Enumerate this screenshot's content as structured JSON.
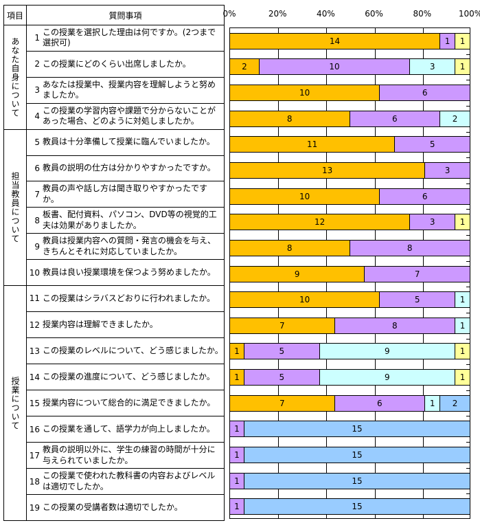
{
  "table": {
    "header_item": "項目",
    "header_question": "質問事項"
  },
  "chart_data": {
    "type": "bar",
    "stacked": true,
    "orientation": "horizontal",
    "value_axis": {
      "position": "top",
      "ticks": [
        "0%",
        "20%",
        "40%",
        "60%",
        "80%",
        "100%"
      ],
      "range_percent": [
        0,
        100
      ],
      "gridlines": true
    },
    "total_per_question": 16,
    "palette": [
      "#FFC000",
      "#CC99FF",
      "#CCFFFF",
      "#FFFF99",
      "#99CCFF"
    ],
    "groups": [
      {
        "label": "あなた自身について",
        "count": 4
      },
      {
        "label": "担当教員について",
        "count": 6
      },
      {
        "label": "授業について",
        "count": 9
      }
    ],
    "rows": [
      {
        "num": "1",
        "question": "この授業を選択した理由は何ですか。(2つまで選択可)",
        "segments": [
          {
            "value": 14,
            "color": "#FFC000"
          },
          {
            "value": 1,
            "color": "#CC99FF"
          },
          {
            "value": 1,
            "color": "#FFFF99"
          }
        ]
      },
      {
        "num": "2",
        "question": "この授業にどのくらい出席しましたか。",
        "segments": [
          {
            "value": 2,
            "color": "#FFC000"
          },
          {
            "value": 10,
            "color": "#CC99FF"
          },
          {
            "value": 3,
            "color": "#CCFFFF"
          },
          {
            "value": 1,
            "color": "#FFFF99"
          }
        ]
      },
      {
        "num": "3",
        "question": "あなたは授業中、授業内容を理解しようと努めましたか。",
        "segments": [
          {
            "value": 10,
            "color": "#FFC000"
          },
          {
            "value": 6,
            "color": "#CC99FF"
          }
        ]
      },
      {
        "num": "4",
        "question": "この授業の学習内容や課題で分からないことがあった場合、どのように対処しましたか。",
        "segments": [
          {
            "value": 8,
            "color": "#FFC000"
          },
          {
            "value": 6,
            "color": "#CC99FF"
          },
          {
            "value": 2,
            "color": "#CCFFFF"
          }
        ]
      },
      {
        "num": "5",
        "question": "教員は十分準備して授業に臨んでいましたか。",
        "segments": [
          {
            "value": 11,
            "color": "#FFC000"
          },
          {
            "value": 5,
            "color": "#CC99FF"
          }
        ]
      },
      {
        "num": "6",
        "question": "教員の説明の仕方は分かりやすかったですか。",
        "segments": [
          {
            "value": 13,
            "color": "#FFC000"
          },
          {
            "value": 3,
            "color": "#CC99FF"
          }
        ]
      },
      {
        "num": "7",
        "question": "教員の声や話し方は聞き取りやすかったですか。",
        "segments": [
          {
            "value": 10,
            "color": "#FFC000"
          },
          {
            "value": 6,
            "color": "#CC99FF"
          }
        ]
      },
      {
        "num": "8",
        "question": "板書、配付資料、パソコン、DVD等の視覚的工夫は効果がありましたか。",
        "segments": [
          {
            "value": 12,
            "color": "#FFC000"
          },
          {
            "value": 3,
            "color": "#CC99FF"
          },
          {
            "value": 1,
            "color": "#FFFF99"
          }
        ]
      },
      {
        "num": "9",
        "question": "教員は授業内容への質問・発言の機会を与え、きちんとそれに対応していましたか。",
        "segments": [
          {
            "value": 8,
            "color": "#FFC000"
          },
          {
            "value": 8,
            "color": "#CC99FF"
          }
        ]
      },
      {
        "num": "10",
        "question": "教員は良い授業環境を保つよう努めましたか。",
        "segments": [
          {
            "value": 9,
            "color": "#FFC000"
          },
          {
            "value": 7,
            "color": "#CC99FF"
          }
        ]
      },
      {
        "num": "11",
        "question": "この授業はシラバスどおりに行われましたか。",
        "segments": [
          {
            "value": 10,
            "color": "#FFC000"
          },
          {
            "value": 5,
            "color": "#CC99FF"
          },
          {
            "value": 1,
            "color": "#CCFFFF"
          }
        ]
      },
      {
        "num": "12",
        "question": "授業内容は理解できましたか。",
        "segments": [
          {
            "value": 7,
            "color": "#FFC000"
          },
          {
            "value": 8,
            "color": "#CC99FF"
          },
          {
            "value": 1,
            "color": "#CCFFFF"
          }
        ]
      },
      {
        "num": "13",
        "question": "この授業のレベルについて、どう感じましたか。",
        "segments": [
          {
            "value": 1,
            "color": "#FFC000"
          },
          {
            "value": 5,
            "color": "#CC99FF"
          },
          {
            "value": 9,
            "color": "#CCFFFF"
          },
          {
            "value": 1,
            "color": "#FFFF99"
          }
        ]
      },
      {
        "num": "14",
        "question": "この授業の進度について、どう感じましたか。",
        "segments": [
          {
            "value": 1,
            "color": "#FFC000"
          },
          {
            "value": 5,
            "color": "#CC99FF"
          },
          {
            "value": 9,
            "color": "#CCFFFF"
          },
          {
            "value": 1,
            "color": "#FFFF99"
          }
        ]
      },
      {
        "num": "15",
        "question": "授業内容について総合的に満足できましたか。",
        "segments": [
          {
            "value": 7,
            "color": "#FFC000"
          },
          {
            "value": 6,
            "color": "#CC99FF"
          },
          {
            "value": 1,
            "color": "#CCFFFF"
          },
          {
            "value": 2,
            "color": "#99CCFF"
          }
        ]
      },
      {
        "num": "16",
        "question": "この授業を通して、語学力が向上しましたか。",
        "segments": [
          {
            "value": 1,
            "color": "#CC99FF"
          },
          {
            "value": 15,
            "color": "#99CCFF"
          }
        ]
      },
      {
        "num": "17",
        "question": "教員の説明以外に、学生の練習の時間が十分に与えられていましたか。",
        "segments": [
          {
            "value": 1,
            "color": "#CC99FF"
          },
          {
            "value": 15,
            "color": "#99CCFF"
          }
        ]
      },
      {
        "num": "18",
        "question": "この授業で使われた教科書の内容およびレベルは適切でしたか。",
        "segments": [
          {
            "value": 1,
            "color": "#CC99FF"
          },
          {
            "value": 15,
            "color": "#99CCFF"
          }
        ]
      },
      {
        "num": "19",
        "question": "この授業の受講者数は適切でしたか。",
        "segments": [
          {
            "value": 1,
            "color": "#CC99FF"
          },
          {
            "value": 15,
            "color": "#99CCFF"
          }
        ]
      }
    ]
  }
}
